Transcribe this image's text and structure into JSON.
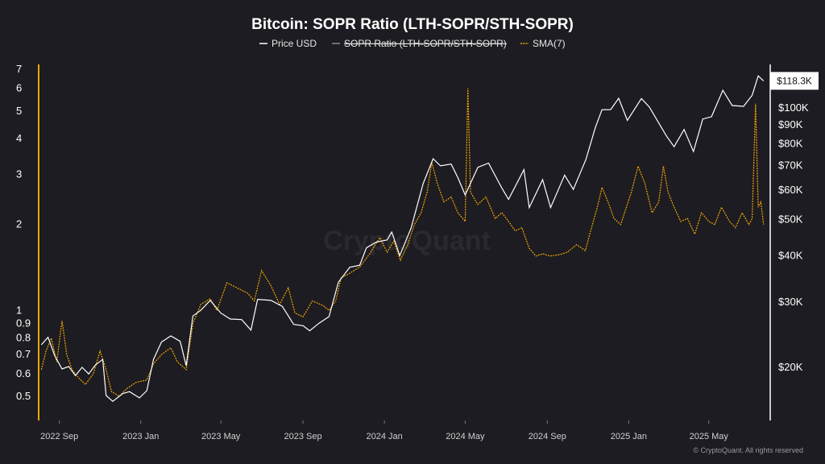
{
  "chart_data": {
    "type": "line",
    "title": "Bitcoin: SOPR Ratio (LTH-SOPR/STH-SOPR)",
    "legend_placement": "top-center",
    "grid": false,
    "x_axis": {
      "range": [
        "2022-08-01",
        "2025-08-01"
      ],
      "ticks": [
        {
          "date": "2022-09-01",
          "label": "2022 Sep"
        },
        {
          "date": "2023-01-01",
          "label": "2023 Jan"
        },
        {
          "date": "2023-05-01",
          "label": "2023 May"
        },
        {
          "date": "2023-09-01",
          "label": "2023 Sep"
        },
        {
          "date": "2024-01-01",
          "label": "2024 Jan"
        },
        {
          "date": "2024-05-01",
          "label": "2024 May"
        },
        {
          "date": "2024-09-01",
          "label": "2024 Sep"
        },
        {
          "date": "2025-01-01",
          "label": "2025 Jan"
        },
        {
          "date": "2025-05-01",
          "label": "2025 May"
        }
      ]
    },
    "y_left": {
      "scale": "log",
      "range": [
        0.42,
        7.4
      ],
      "ticks": [
        {
          "value": 0.5,
          "label": "0.5"
        },
        {
          "value": 0.6,
          "label": "0.6"
        },
        {
          "value": 0.7,
          "label": "0.7"
        },
        {
          "value": 0.8,
          "label": "0.8"
        },
        {
          "value": 0.9,
          "label": "0.9"
        },
        {
          "value": 1,
          "label": "1"
        },
        {
          "value": 2,
          "label": "2"
        },
        {
          "value": 3,
          "label": "3"
        },
        {
          "value": 4,
          "label": "4"
        },
        {
          "value": 5,
          "label": "5"
        },
        {
          "value": 6,
          "label": "6"
        },
        {
          "value": 7,
          "label": "7"
        }
      ]
    },
    "y_right": {
      "scale": "log",
      "range": [
        14500,
        122000
      ],
      "ticks": [
        {
          "value": 20000,
          "label": "$20K"
        },
        {
          "value": 30000,
          "label": "$30K"
        },
        {
          "value": 40000,
          "label": "$40K"
        },
        {
          "value": 50000,
          "label": "$50K"
        },
        {
          "value": 60000,
          "label": "$60K"
        },
        {
          "value": 70000,
          "label": "$70K"
        },
        {
          "value": 80000,
          "label": "$80K"
        },
        {
          "value": 90000,
          "label": "$90K"
        },
        {
          "value": 100000,
          "label": "$100K"
        }
      ],
      "last_value_label": "$118.3K"
    },
    "series": [
      {
        "name": "Price USD",
        "axis": "right",
        "color": "#ffffff",
        "visible": true,
        "points": [
          [
            "2022-08-05",
            23000
          ],
          [
            "2022-08-15",
            24100
          ],
          [
            "2022-08-25",
            21500
          ],
          [
            "2022-09-05",
            19800
          ],
          [
            "2022-09-15",
            20100
          ],
          [
            "2022-09-25",
            19000
          ],
          [
            "2022-10-05",
            20000
          ],
          [
            "2022-10-15",
            19200
          ],
          [
            "2022-10-25",
            20300
          ],
          [
            "2022-11-05",
            21000
          ],
          [
            "2022-11-10",
            16800
          ],
          [
            "2022-11-20",
            16200
          ],
          [
            "2022-12-05",
            17000
          ],
          [
            "2022-12-15",
            17200
          ],
          [
            "2022-12-30",
            16550
          ],
          [
            "2023-01-10",
            17300
          ],
          [
            "2023-01-20",
            21000
          ],
          [
            "2023-02-01",
            23400
          ],
          [
            "2023-02-15",
            24300
          ],
          [
            "2023-03-01",
            23500
          ],
          [
            "2023-03-10",
            20200
          ],
          [
            "2023-03-20",
            27500
          ],
          [
            "2023-04-01",
            28500
          ],
          [
            "2023-04-15",
            30300
          ],
          [
            "2023-05-01",
            28000
          ],
          [
            "2023-05-15",
            27000
          ],
          [
            "2023-06-01",
            26900
          ],
          [
            "2023-06-15",
            25200
          ],
          [
            "2023-06-25",
            30500
          ],
          [
            "2023-07-15",
            30300
          ],
          [
            "2023-08-01",
            29200
          ],
          [
            "2023-08-18",
            26100
          ],
          [
            "2023-09-01",
            25900
          ],
          [
            "2023-09-11",
            25100
          ],
          [
            "2023-09-25",
            26300
          ],
          [
            "2023-10-10",
            27400
          ],
          [
            "2023-10-24",
            33900
          ],
          [
            "2023-11-10",
            37200
          ],
          [
            "2023-11-25",
            37700
          ],
          [
            "2023-12-05",
            42000
          ],
          [
            "2023-12-20",
            43500
          ],
          [
            "2024-01-05",
            44100
          ],
          [
            "2024-01-12",
            46300
          ],
          [
            "2024-01-24",
            40000
          ],
          [
            "2024-02-10",
            47500
          ],
          [
            "2024-02-28",
            62500
          ],
          [
            "2024-03-14",
            73000
          ],
          [
            "2024-03-25",
            69800
          ],
          [
            "2024-04-10",
            70600
          ],
          [
            "2024-04-20",
            64900
          ],
          [
            "2024-05-01",
            58300
          ],
          [
            "2024-05-20",
            69200
          ],
          [
            "2024-06-05",
            71000
          ],
          [
            "2024-06-25",
            60800
          ],
          [
            "2024-07-05",
            56700
          ],
          [
            "2024-07-28",
            68200
          ],
          [
            "2024-08-05",
            53900
          ],
          [
            "2024-08-25",
            64100
          ],
          [
            "2024-09-06",
            53900
          ],
          [
            "2024-09-27",
            65900
          ],
          [
            "2024-10-10",
            60300
          ],
          [
            "2024-10-29",
            72700
          ],
          [
            "2024-11-12",
            88500
          ],
          [
            "2024-11-22",
            98900
          ],
          [
            "2024-12-05",
            99000
          ],
          [
            "2024-12-17",
            106200
          ],
          [
            "2024-12-30",
            92600
          ],
          [
            "2025-01-20",
            106000
          ],
          [
            "2025-02-01",
            100600
          ],
          [
            "2025-02-26",
            84300
          ],
          [
            "2025-03-10",
            78600
          ],
          [
            "2025-03-25",
            87500
          ],
          [
            "2025-04-08",
            76300
          ],
          [
            "2025-04-22",
            93400
          ],
          [
            "2025-05-05",
            94700
          ],
          [
            "2025-05-22",
            111600
          ],
          [
            "2025-06-05",
            101500
          ],
          [
            "2025-06-22",
            101000
          ],
          [
            "2025-07-05",
            108200
          ],
          [
            "2025-07-14",
            122000
          ],
          [
            "2025-07-22",
            118300
          ]
        ]
      },
      {
        "name": "SOPR Ratio (LTH-SOPR/STH-SOPR)",
        "axis": "left",
        "color": "#8a8a8a",
        "visible": false,
        "points": []
      },
      {
        "name": "SMA(7)",
        "axis": "left",
        "color": "#f0a500",
        "visible": true,
        "points": [
          [
            "2022-08-05",
            0.62
          ],
          [
            "2022-08-12",
            0.72
          ],
          [
            "2022-08-20",
            0.8
          ],
          [
            "2022-08-28",
            0.66
          ],
          [
            "2022-09-05",
            0.92
          ],
          [
            "2022-09-12",
            0.7
          ],
          [
            "2022-09-20",
            0.62
          ],
          [
            "2022-09-30",
            0.58
          ],
          [
            "2022-10-10",
            0.55
          ],
          [
            "2022-10-22",
            0.6
          ],
          [
            "2022-11-01",
            0.72
          ],
          [
            "2022-11-10",
            0.62
          ],
          [
            "2022-11-18",
            0.52
          ],
          [
            "2022-11-30",
            0.5
          ],
          [
            "2022-12-10",
            0.53
          ],
          [
            "2022-12-25",
            0.56
          ],
          [
            "2023-01-10",
            0.57
          ],
          [
            "2023-01-20",
            0.65
          ],
          [
            "2023-02-01",
            0.7
          ],
          [
            "2023-02-15",
            0.74
          ],
          [
            "2023-02-25",
            0.66
          ],
          [
            "2023-03-10",
            0.62
          ],
          [
            "2023-03-20",
            0.9
          ],
          [
            "2023-04-01",
            1.05
          ],
          [
            "2023-04-15",
            1.1
          ],
          [
            "2023-04-25",
            1.0
          ],
          [
            "2023-05-10",
            1.25
          ],
          [
            "2023-05-25",
            1.2
          ],
          [
            "2023-06-10",
            1.15
          ],
          [
            "2023-06-20",
            1.08
          ],
          [
            "2023-07-01",
            1.38
          ],
          [
            "2023-07-15",
            1.22
          ],
          [
            "2023-07-28",
            1.05
          ],
          [
            "2023-08-10",
            1.2
          ],
          [
            "2023-08-20",
            0.98
          ],
          [
            "2023-09-01",
            0.95
          ],
          [
            "2023-09-15",
            1.08
          ],
          [
            "2023-10-01",
            1.04
          ],
          [
            "2023-10-10",
            1.0
          ],
          [
            "2023-10-20",
            1.08
          ],
          [
            "2023-10-28",
            1.3
          ],
          [
            "2023-11-10",
            1.35
          ],
          [
            "2023-11-25",
            1.42
          ],
          [
            "2023-12-10",
            1.58
          ],
          [
            "2023-12-25",
            1.8
          ],
          [
            "2024-01-05",
            1.6
          ],
          [
            "2024-01-15",
            1.75
          ],
          [
            "2024-01-25",
            1.5
          ],
          [
            "2024-02-05",
            1.7
          ],
          [
            "2024-02-15",
            2.0
          ],
          [
            "2024-02-25",
            2.2
          ],
          [
            "2024-03-05",
            2.6
          ],
          [
            "2024-03-12",
            3.3
          ],
          [
            "2024-03-20",
            2.8
          ],
          [
            "2024-03-30",
            2.4
          ],
          [
            "2024-04-10",
            2.5
          ],
          [
            "2024-04-20",
            2.2
          ],
          [
            "2024-05-01",
            2.05
          ],
          [
            "2024-05-05",
            6.0
          ],
          [
            "2024-05-09",
            2.6
          ],
          [
            "2024-05-20",
            2.35
          ],
          [
            "2024-06-01",
            2.5
          ],
          [
            "2024-06-15",
            2.1
          ],
          [
            "2024-06-25",
            2.2
          ],
          [
            "2024-07-05",
            2.05
          ],
          [
            "2024-07-15",
            1.9
          ],
          [
            "2024-07-25",
            1.95
          ],
          [
            "2024-08-05",
            1.65
          ],
          [
            "2024-08-15",
            1.55
          ],
          [
            "2024-08-25",
            1.58
          ],
          [
            "2024-09-05",
            1.55
          ],
          [
            "2024-09-20",
            1.57
          ],
          [
            "2024-10-01",
            1.6
          ],
          [
            "2024-10-15",
            1.7
          ],
          [
            "2024-10-28",
            1.62
          ],
          [
            "2024-11-05",
            1.9
          ],
          [
            "2024-11-15",
            2.3
          ],
          [
            "2024-11-22",
            2.7
          ],
          [
            "2024-12-01",
            2.4
          ],
          [
            "2024-12-10",
            2.1
          ],
          [
            "2024-12-20",
            2.0
          ],
          [
            "2025-01-05",
            2.6
          ],
          [
            "2025-01-15",
            3.2
          ],
          [
            "2025-01-25",
            2.8
          ],
          [
            "2025-02-05",
            2.2
          ],
          [
            "2025-02-15",
            2.4
          ],
          [
            "2025-02-22",
            3.2
          ],
          [
            "2025-03-01",
            2.6
          ],
          [
            "2025-03-10",
            2.3
          ],
          [
            "2025-03-20",
            2.05
          ],
          [
            "2025-03-30",
            2.1
          ],
          [
            "2025-04-10",
            1.85
          ],
          [
            "2025-04-20",
            2.2
          ],
          [
            "2025-05-01",
            2.05
          ],
          [
            "2025-05-10",
            2.0
          ],
          [
            "2025-05-20",
            2.3
          ],
          [
            "2025-06-01",
            2.05
          ],
          [
            "2025-06-10",
            1.95
          ],
          [
            "2025-06-20",
            2.2
          ],
          [
            "2025-06-30",
            2.0
          ],
          [
            "2025-07-05",
            2.1
          ],
          [
            "2025-07-10",
            5.3
          ],
          [
            "2025-07-14",
            2.3
          ],
          [
            "2025-07-18",
            2.4
          ],
          [
            "2025-07-22",
            2.0
          ]
        ]
      }
    ]
  },
  "watermark": "CryptoQuant",
  "copyright": "© CryptoQuant. All rights reserved",
  "colors": {
    "background": "#1d1c22",
    "price": "#ffffff",
    "sma": "#f0a500",
    "sopr_legend": "#8a8a8a",
    "left_axis": "#e6a800"
  }
}
